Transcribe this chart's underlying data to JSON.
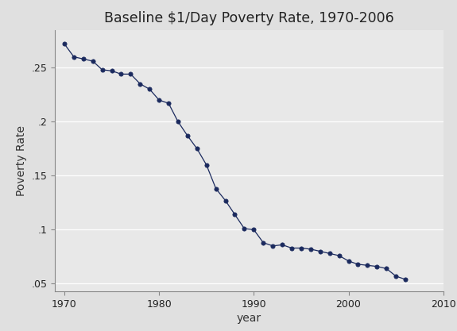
{
  "title": "Baseline $1/Day Poverty Rate, 1970-2006",
  "xlabel": "year",
  "ylabel": "Poverty Rate",
  "line_color": "#1b2a5e",
  "marker_color": "#1b2a5e",
  "fig_bg_color": "#e0e0e0",
  "plot_bg_color": "#e8e8e8",
  "grid_color": "#ffffff",
  "xlim": [
    1969,
    2009
  ],
  "ylim": [
    0.043,
    0.285
  ],
  "xticks": [
    1970,
    1980,
    1990,
    2000,
    2010
  ],
  "yticks": [
    0.05,
    0.1,
    0.15,
    0.2,
    0.25
  ],
  "years": [
    1970,
    1971,
    1972,
    1973,
    1974,
    1975,
    1976,
    1977,
    1978,
    1979,
    1980,
    1981,
    1982,
    1983,
    1984,
    1985,
    1986,
    1987,
    1988,
    1989,
    1990,
    1991,
    1992,
    1993,
    1994,
    1995,
    1996,
    1997,
    1998,
    1999,
    2000,
    2001,
    2002,
    2003,
    2004,
    2005,
    2006
  ],
  "values": [
    0.272,
    0.26,
    0.258,
    0.256,
    0.248,
    0.247,
    0.244,
    0.244,
    0.235,
    0.23,
    0.22,
    0.217,
    0.2,
    0.187,
    0.175,
    0.16,
    0.138,
    0.127,
    0.114,
    0.101,
    0.1,
    0.088,
    0.085,
    0.086,
    0.083,
    0.083,
    0.082,
    0.08,
    0.078,
    0.076,
    0.071,
    0.068,
    0.067,
    0.066,
    0.064,
    0.057,
    0.054
  ]
}
